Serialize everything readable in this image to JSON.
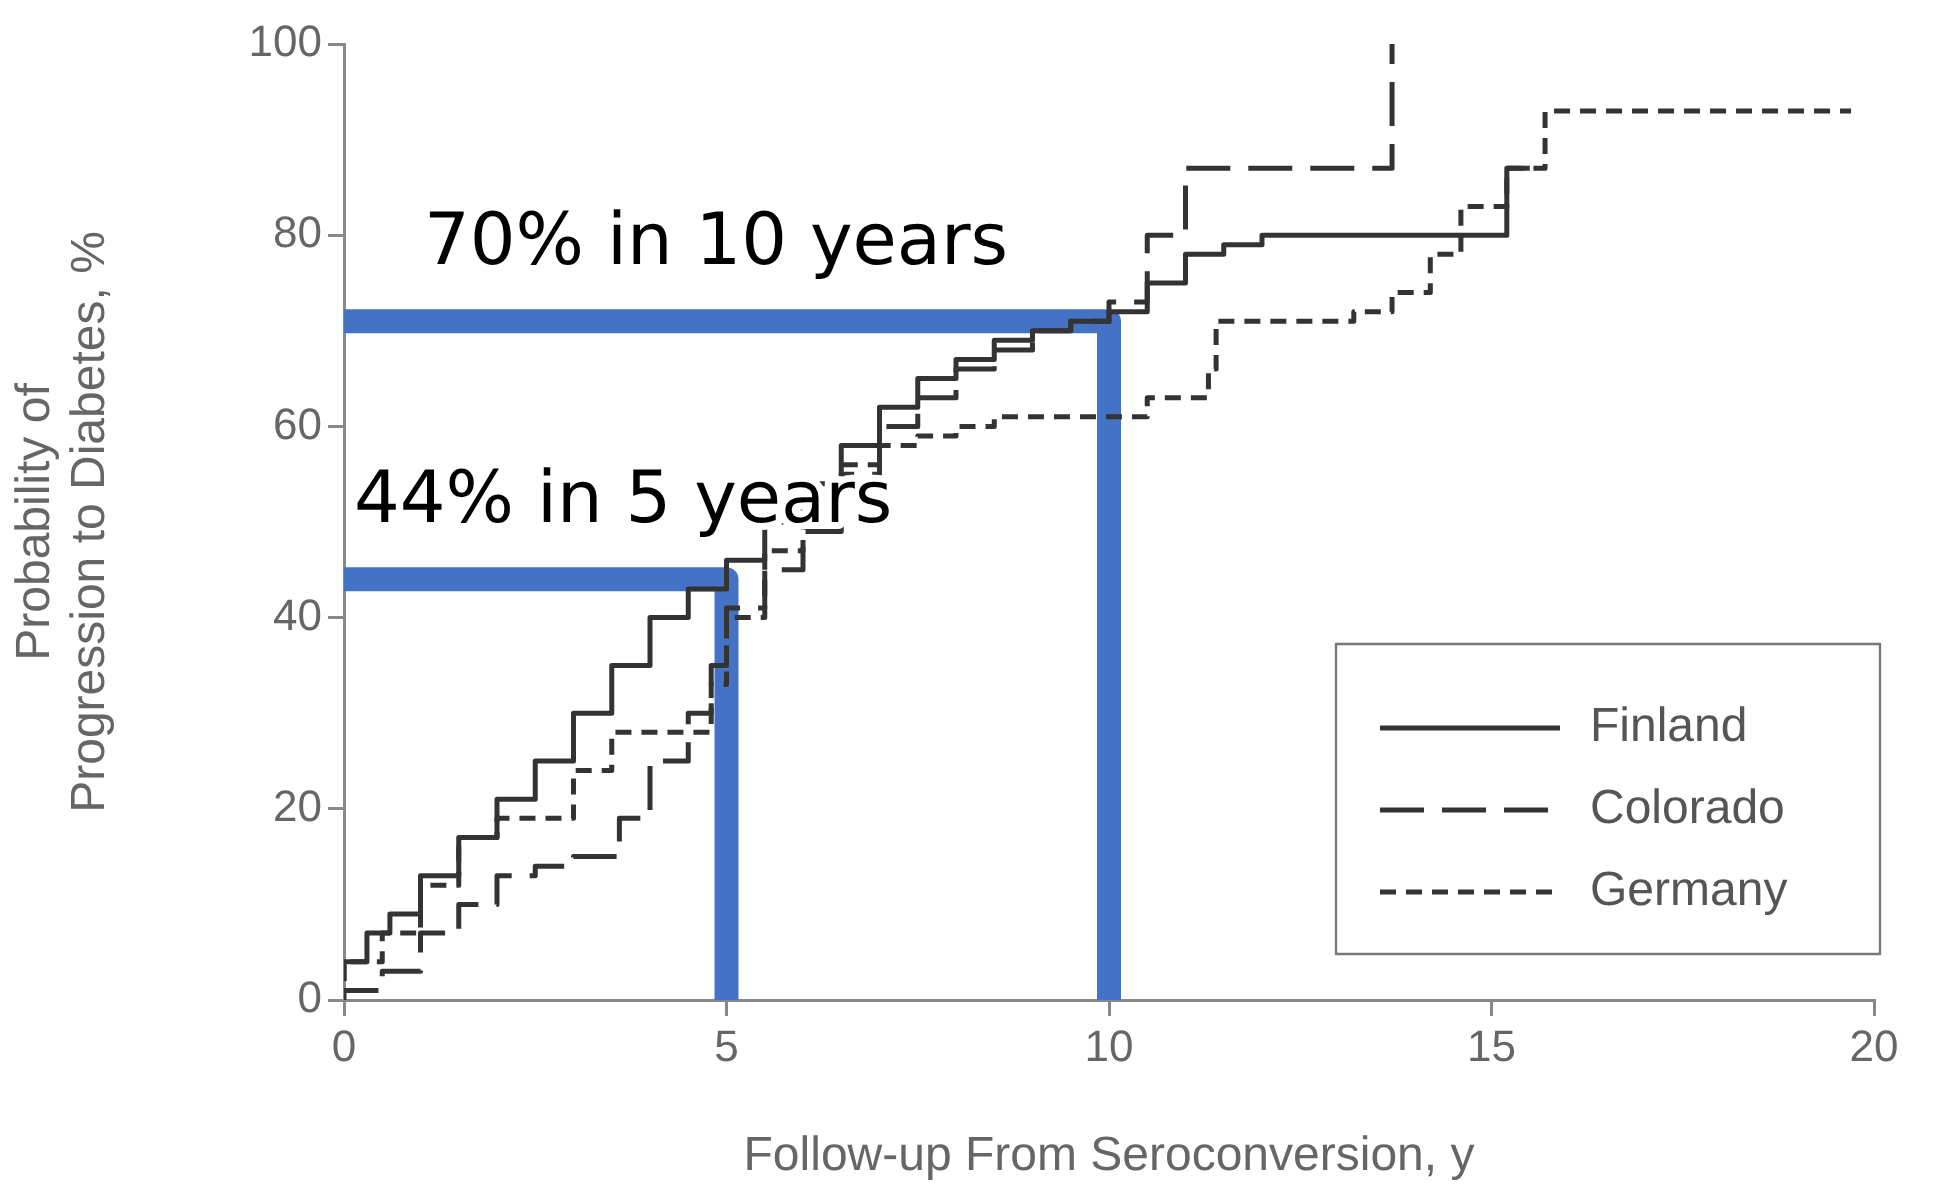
{
  "chart_data": {
    "type": "step",
    "xlabel": "Follow-up From Seroconversion, y",
    "ylabel": "Probability of Progression to Diabetes, %",
    "xlim": [
      0,
      20
    ],
    "xticks": [
      0,
      5,
      10,
      15,
      20
    ],
    "ylim": [
      0,
      100
    ],
    "yticks": [
      0,
      20,
      40,
      60,
      80,
      100
    ],
    "grid": false,
    "legend": "bottom right",
    "marker": "none",
    "series": [
      {
        "name": "Finland",
        "color": "#333333",
        "line_style": "solid",
        "x": [
          0,
          0.3,
          0.6,
          1,
          1.5,
          2,
          2.5,
          3,
          3.5,
          4,
          4.5,
          5,
          5.5,
          6,
          6.5,
          7,
          7.5,
          8,
          8.5,
          9,
          9.5,
          10,
          10.5,
          11,
          11.5,
          12,
          13,
          14,
          15.2,
          15.2,
          15.5
        ],
        "values": [
          2,
          4,
          7,
          9,
          13,
          17,
          21,
          25,
          30,
          35,
          40,
          43,
          46,
          50,
          54,
          58,
          62,
          65,
          67,
          69,
          70,
          71,
          72,
          75,
          78,
          79,
          80,
          80,
          80,
          87,
          87
        ]
      },
      {
        "name": "Colorado",
        "color": "#333333",
        "line_style": "dashed",
        "x": [
          0,
          0.5,
          1,
          1.5,
          2,
          2.5,
          3,
          3.6,
          4,
          4.5,
          4.8,
          5,
          5.5,
          6,
          6.5,
          7,
          7.5,
          8,
          8.5,
          9,
          9.5,
          10,
          10.5,
          11,
          11.4,
          13.7,
          13.7
        ],
        "values": [
          0,
          1,
          3,
          7,
          10,
          13,
          14,
          15,
          19,
          25,
          30,
          35,
          41,
          45,
          49,
          55,
          60,
          63,
          66,
          68,
          70,
          71,
          73,
          80,
          87,
          87,
          100
        ]
      },
      {
        "name": "Germany",
        "color": "#333333",
        "line_style": "dotted",
        "x": [
          0,
          0.5,
          1,
          1.5,
          2,
          2.5,
          3,
          3.5,
          4,
          4.8,
          5,
          5.5,
          6,
          6.5,
          7,
          7.5,
          8,
          8.5,
          9.5,
          10.5,
          11.3,
          11.4,
          13.2,
          13.7,
          14.2,
          14.6,
          15.2,
          15.7,
          17.4,
          19.7
        ],
        "values": [
          2,
          4,
          7,
          12,
          17,
          19,
          19,
          24,
          28,
          28,
          33,
          40,
          47,
          52,
          56,
          58,
          59,
          60,
          61,
          61,
          63,
          66,
          71,
          72,
          74,
          78,
          83,
          87,
          93,
          93
        ]
      },
      {
        "type": "line",
        "color": "#4472c4",
        "x": [
          0,
          10,
          10
        ],
        "values": [
          71,
          71,
          0
        ]
      },
      {
        "type": "line",
        "color": "#4472c4",
        "x": [
          0,
          5,
          5
        ],
        "values": [
          44,
          44,
          0
        ]
      }
    ],
    "annotations": [
      {
        "text": "70% in 10 years",
        "x": 10,
        "y": 71
      },
      {
        "text": "44% in 5 years",
        "x": 5,
        "y": 44
      }
    ]
  }
}
